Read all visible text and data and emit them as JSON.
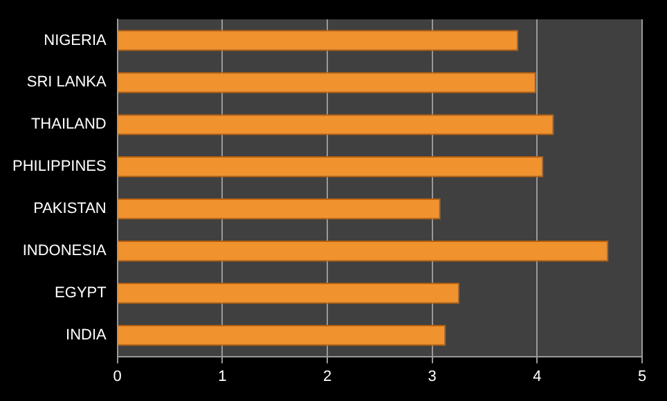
{
  "chart_data": {
    "type": "bar",
    "orientation": "horizontal",
    "categories": [
      "NIGERIA",
      "SRI LANKA",
      "THAILAND",
      "PHILIPPINES",
      "PAKISTAN",
      "INDONESIA",
      "EGYPT",
      "INDIA"
    ],
    "values": [
      3.82,
      3.99,
      4.16,
      4.06,
      3.08,
      4.68,
      3.26,
      3.13
    ],
    "color": "#f0922e",
    "xlim": [
      0,
      5
    ],
    "xticks": [
      0,
      1,
      2,
      3,
      4,
      5
    ],
    "grid": "x",
    "legend": false
  }
}
